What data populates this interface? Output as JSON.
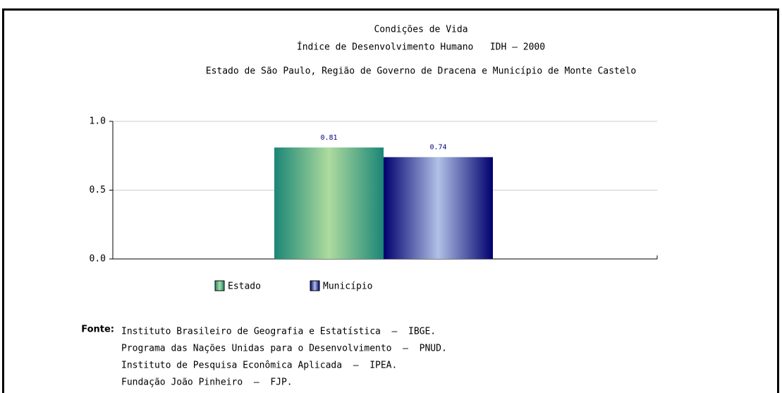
{
  "chart_data": {
    "type": "bar",
    "title": "Condições de Vida",
    "subtitle": [
      "Índice de Desenvolvimento Humano   IDH – 2000",
      "Estado de São Paulo, Região de Governo de Dracena e Município de Monte Castelo"
    ],
    "categories": [
      null
    ],
    "series": [
      {
        "name": "Estado",
        "color": "#1a8676",
        "highlight": "#aedb9e",
        "values": [
          0.81
        ]
      },
      {
        "name": "Município",
        "color": "#00006e",
        "highlight": "#b0c0e6",
        "values": [
          0.74
        ]
      }
    ],
    "ylim": [
      0,
      1
    ],
    "yticks": [
      {
        "value": 0,
        "label": "0.0"
      },
      {
        "value": 0.5,
        "label": "0.5"
      },
      {
        "value": 1,
        "label": "1.0"
      }
    ],
    "grid": true
  },
  "source": {
    "label": "Fonte:",
    "lines": [
      "Instituto Brasileiro de Geografia e Estatística  –  IBGE.",
      "Programa das Nações Unidas para o Desenvolvimento  –  PNUD.",
      "Instituto de Pesquisa Econômica Aplicada  –  IPEA.",
      "Fundação João Pinheiro  –  FJP."
    ]
  }
}
